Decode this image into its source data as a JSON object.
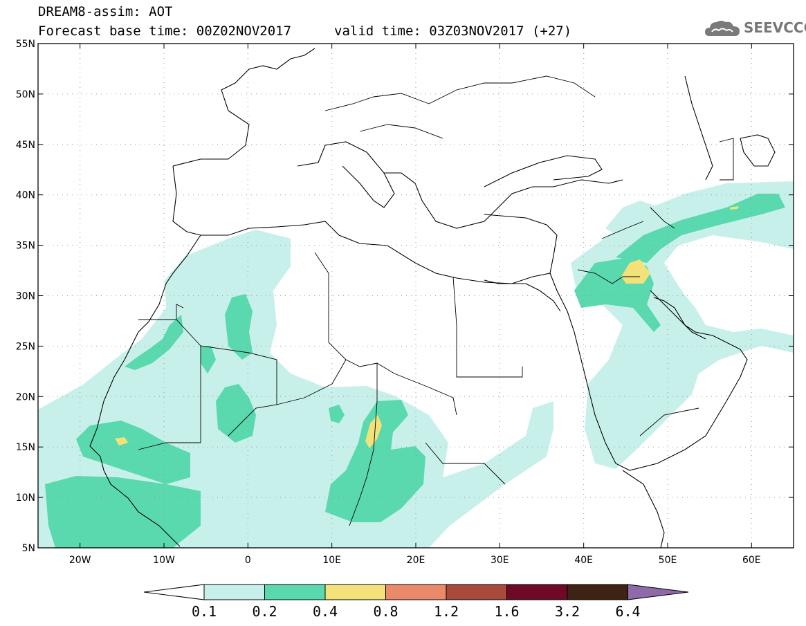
{
  "header": {
    "title": "DREAM8-assim: AOT",
    "base_time": "Forecast base time: 00Z02NOV2017",
    "valid_time": "valid time: 03Z03NOV2017 (+27)"
  },
  "logo": {
    "text": "SEEVCCC",
    "icon": "cloud-icon"
  },
  "map": {
    "lon_range": [
      -25,
      65
    ],
    "lat_range": [
      5,
      55
    ],
    "lat_ticks": [
      "55N",
      "50N",
      "45N",
      "40N",
      "35N",
      "30N",
      "25N",
      "20N",
      "15N",
      "10N",
      "5N"
    ],
    "lon_ticks": [
      "20W",
      "10W",
      "0",
      "10E",
      "20E",
      "30E",
      "40E",
      "50E",
      "60E"
    ]
  },
  "colorbar": {
    "labels": [
      "0.1",
      "0.2",
      "0.4",
      "0.8",
      "1.2",
      "1.6",
      "3.2",
      "6.4"
    ],
    "colors": [
      "#ffffff",
      "#c8f0ea",
      "#5ad8ae",
      "#f3e27a",
      "#e98b6b",
      "#a84a3c",
      "#6e0a26",
      "#3e2214",
      "#8e6aa8"
    ]
  }
}
